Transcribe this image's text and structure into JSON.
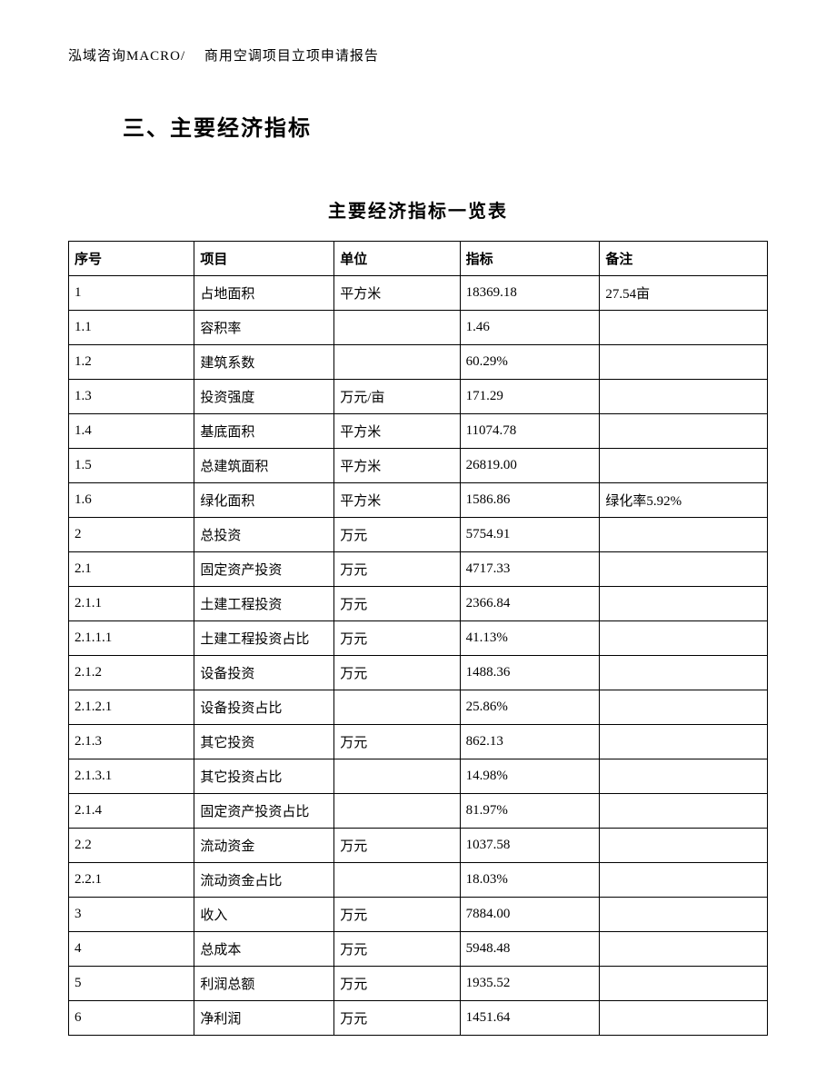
{
  "header": "泓域咨询MACRO/　 商用空调项目立项申请报告",
  "section_heading": "三、主要经济指标",
  "table_title": "主要经济指标一览表",
  "table": {
    "columns": [
      "序号",
      "项目",
      "单位",
      "指标",
      "备注"
    ],
    "rows": [
      [
        "1",
        "占地面积",
        "平方米",
        "18369.18",
        "27.54亩"
      ],
      [
        "1.1",
        "容积率",
        "",
        "1.46",
        ""
      ],
      [
        "1.2",
        "建筑系数",
        "",
        "60.29%",
        ""
      ],
      [
        "1.3",
        "投资强度",
        "万元/亩",
        "171.29",
        ""
      ],
      [
        "1.4",
        "基底面积",
        "平方米",
        "11074.78",
        ""
      ],
      [
        "1.5",
        "总建筑面积",
        "平方米",
        "26819.00",
        ""
      ],
      [
        "1.6",
        "绿化面积",
        "平方米",
        "1586.86",
        "绿化率5.92%"
      ],
      [
        "2",
        "总投资",
        "万元",
        "5754.91",
        ""
      ],
      [
        "2.1",
        "固定资产投资",
        "万元",
        "4717.33",
        ""
      ],
      [
        "2.1.1",
        "土建工程投资",
        "万元",
        "2366.84",
        ""
      ],
      [
        "2.1.1.1",
        "土建工程投资占比",
        "万元",
        "41.13%",
        ""
      ],
      [
        "2.1.2",
        "设备投资",
        "万元",
        "1488.36",
        ""
      ],
      [
        "2.1.2.1",
        "设备投资占比",
        "",
        "25.86%",
        ""
      ],
      [
        "2.1.3",
        "其它投资",
        "万元",
        "862.13",
        ""
      ],
      [
        "2.1.3.1",
        "其它投资占比",
        "",
        "14.98%",
        ""
      ],
      [
        "2.1.4",
        "固定资产投资占比",
        "",
        "81.97%",
        ""
      ],
      [
        "2.2",
        "流动资金",
        "万元",
        "1037.58",
        ""
      ],
      [
        "2.2.1",
        "流动资金占比",
        "",
        "18.03%",
        ""
      ],
      [
        "3",
        "收入",
        "万元",
        "7884.00",
        ""
      ],
      [
        "4",
        "总成本",
        "万元",
        "5948.48",
        ""
      ],
      [
        "5",
        "利润总额",
        "万元",
        "1935.52",
        ""
      ],
      [
        "6",
        "净利润",
        "万元",
        "1451.64",
        ""
      ]
    ]
  }
}
